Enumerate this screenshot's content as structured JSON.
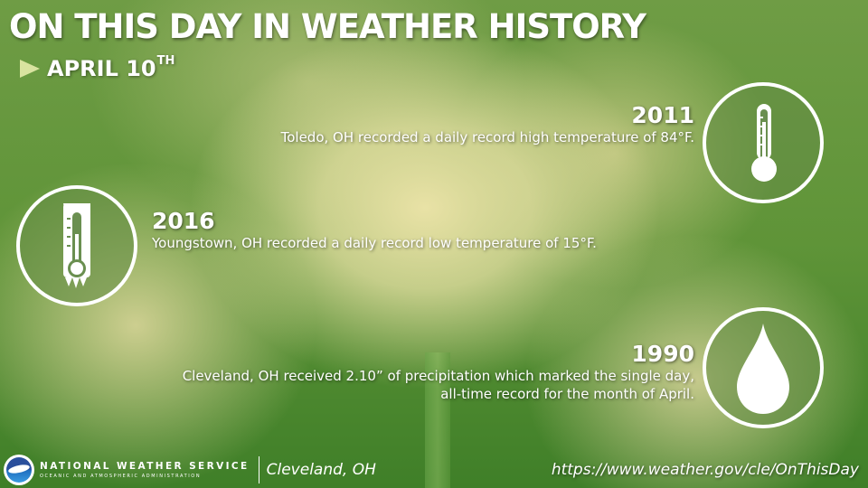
{
  "header": {
    "title": "ON THIS DAY IN WEATHER HISTORY",
    "date": "APRIL 10",
    "date_suffix": "TH"
  },
  "events": [
    {
      "year": "2011",
      "description": "Toledo, OH recorded a daily record high temperature of 84°F.",
      "icon": "thermometer-icon"
    },
    {
      "year": "2016",
      "description": "Youngstown, OH recorded a daily record low temperature of 15°F.",
      "icon": "frozen-thermometer-icon"
    },
    {
      "year": "1990",
      "description_line1": "Cleveland, OH received 2.10” of precipitation which marked the single day,",
      "description_line2": "all-time record for the month of April.",
      "icon": "raindrop-icon"
    }
  ],
  "footer": {
    "agency_name": "NATIONAL WEATHER SERVICE",
    "agency_subtitle": "OCEANIC AND ATMOSPHERIC ADMINISTRATION",
    "office": "Cleveland, OH",
    "url": "https://www.weather.gov/cle/OnThisDay"
  },
  "colors": {
    "background_green": "#5f9438",
    "text": "#ffffff",
    "arrow": "#d9e3a0"
  }
}
